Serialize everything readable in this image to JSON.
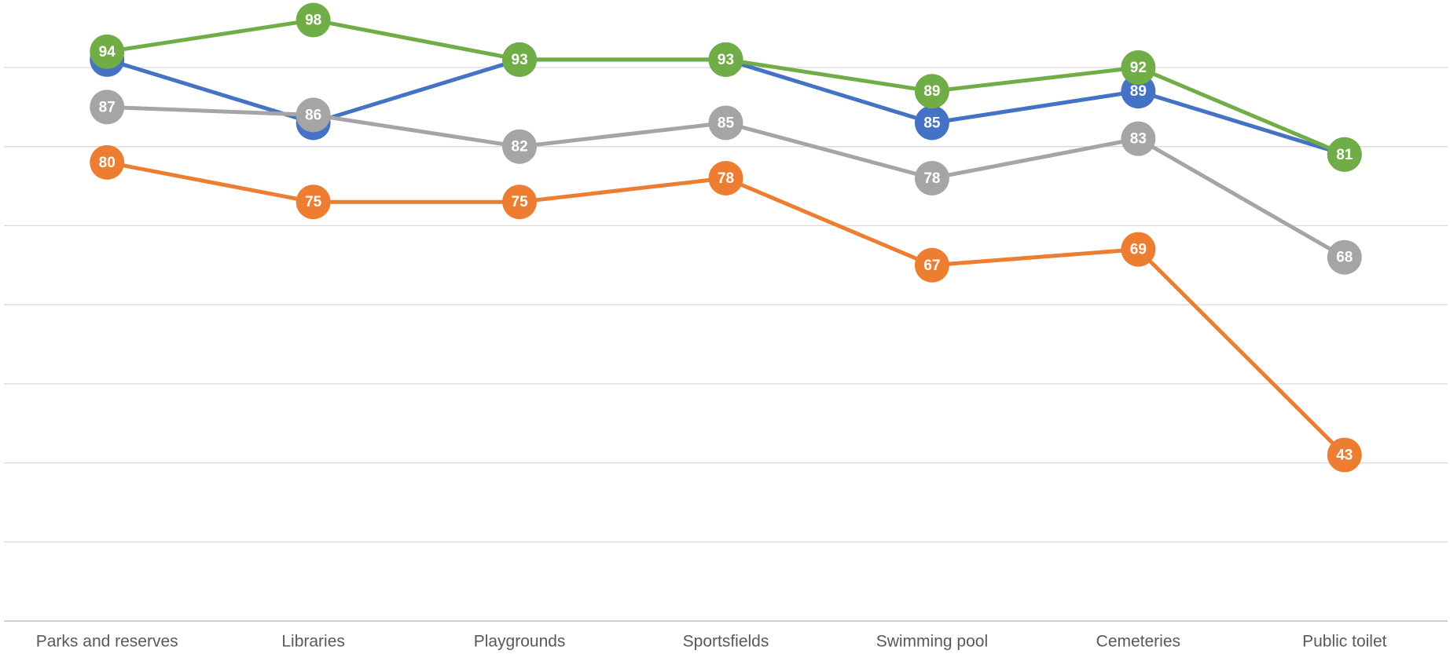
{
  "chart_data": {
    "type": "line",
    "categories": [
      "Parks and reserves",
      "Libraries",
      "Playgrounds",
      "Sportsfields",
      "Swimming pool",
      "Cemeteries",
      "Public toilet"
    ],
    "series": [
      {
        "color": "#4472c4",
        "values": [
          93,
          85,
          93,
          93,
          85,
          89,
          81
        ]
      },
      {
        "color": "#ed7d31",
        "values": [
          80,
          75,
          75,
          78,
          67,
          69,
          43
        ]
      },
      {
        "color": "#a5a5a5",
        "values": [
          87,
          86,
          82,
          85,
          78,
          83,
          68
        ]
      },
      {
        "color": "#70ad47",
        "values": [
          94,
          98,
          93,
          93,
          89,
          92,
          81
        ]
      }
    ],
    "ylim": [
      22,
      100
    ],
    "yticks": [
      32,
      42,
      52,
      62,
      72,
      82,
      92
    ],
    "grid": true
  }
}
